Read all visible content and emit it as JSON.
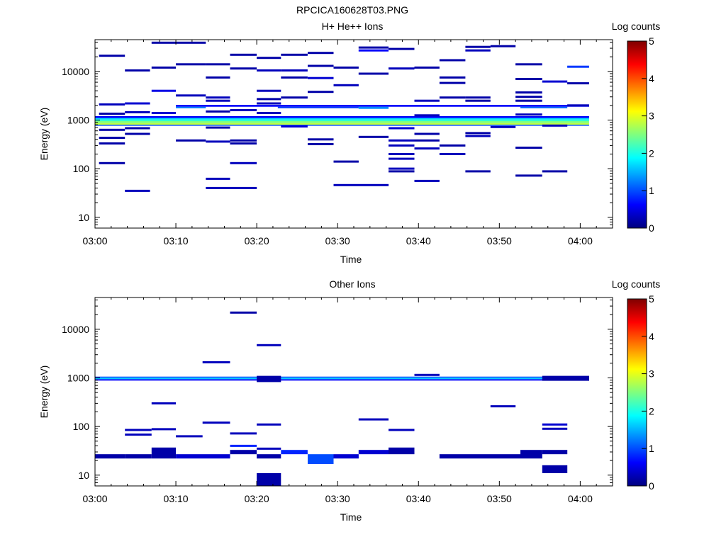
{
  "figure_title": "RPCICA160628T03.PNG",
  "colormap": [
    "#00007f",
    "#0000ff",
    "#007fff",
    "#00ffff",
    "#7fff7f",
    "#ffff00",
    "#ff7f00",
    "#ff0000",
    "#7f0000"
  ],
  "chart_data": [
    {
      "type": "heatmap",
      "title": "H+ He++ Ions",
      "xlabel": "Time",
      "ylabel": "Energy (eV)",
      "x_ticks": [
        "03:00",
        "03:10",
        "03:20",
        "03:30",
        "03:40",
        "03:50",
        "04:00"
      ],
      "y_ticks": [
        "10",
        "100",
        "1000",
        "10000"
      ],
      "y_scale": "log",
      "ylim": [
        6,
        45000
      ],
      "xlim_minutes": [
        0,
        64
      ],
      "colorbar": {
        "label": "Log counts",
        "ticks": [
          "0",
          "1",
          "2",
          "3",
          "4",
          "5"
        ],
        "range": [
          0,
          5
        ]
      },
      "x_bins_minutes": [
        0,
        3.7,
        6.3,
        10,
        13.7,
        16.7,
        20,
        22.6,
        26.3,
        29.5,
        32.6,
        36.3,
        39.5,
        42.6,
        46.3,
        48.4,
        52.6,
        55.3,
        58.4,
        61.1
      ],
      "bands": [
        {
          "x0": 0,
          "x1": 61.1,
          "e0": 800,
          "e1": 870,
          "v": 2.8
        },
        {
          "x0": 0,
          "x1": 61.1,
          "e0": 870,
          "e1": 950,
          "v": 2.5
        },
        {
          "x0": 0,
          "x1": 61.1,
          "e0": 950,
          "e1": 1030,
          "v": 2.1
        },
        {
          "x0": 0,
          "x1": 61.1,
          "e0": 1030,
          "e1": 1100,
          "v": 1.7
        },
        {
          "x0": 0,
          "x1": 61.1,
          "e0": 1100,
          "e1": 1200,
          "v": 0.6
        },
        {
          "x0": 0,
          "x1": 61.1,
          "e0": 760,
          "e1": 800,
          "v": 1.0
        },
        {
          "x0": 10,
          "x1": 61.1,
          "e0": 1880,
          "e1": 2050,
          "v": 0.6
        },
        {
          "x0": 10,
          "x1": 13.7,
          "e0": 1750,
          "e1": 1880,
          "v": 1.2
        },
        {
          "x0": 22.6,
          "x1": 32.6,
          "e0": 1750,
          "e1": 1880,
          "v": 0.9
        },
        {
          "x0": 32.6,
          "x1": 36.3,
          "e0": 1700,
          "e1": 1880,
          "v": 1.3
        },
        {
          "x0": 52.6,
          "x1": 58.4,
          "e0": 1750,
          "e1": 1880,
          "v": 1.1
        },
        {
          "x0": 61.1,
          "x1": 61.1,
          "e0": 1,
          "e1": 1,
          "v": 0
        }
      ],
      "segments": [
        {
          "x0": 0.5,
          "x1": 3.7,
          "e": 21000,
          "v": 0.2
        },
        {
          "x0": 0.5,
          "x1": 3.7,
          "e": 2100,
          "v": 0.3
        },
        {
          "x0": 0.5,
          "x1": 3.7,
          "e": 1350,
          "v": 0.2
        },
        {
          "x0": 0.5,
          "x1": 3.7,
          "e": 630,
          "v": 0.2
        },
        {
          "x0": 0.5,
          "x1": 3.7,
          "e": 430,
          "v": 0.2
        },
        {
          "x0": 0.5,
          "x1": 3.7,
          "e": 330,
          "v": 0.2
        },
        {
          "x0": 0.5,
          "x1": 3.7,
          "e": 130,
          "v": 0.2
        },
        {
          "x0": 3.7,
          "x1": 6.8,
          "e": 10500,
          "v": 0.2
        },
        {
          "x0": 3.7,
          "x1": 6.8,
          "e": 2200,
          "v": 0.4
        },
        {
          "x0": 3.7,
          "x1": 6.8,
          "e": 1450,
          "v": 0.3
        },
        {
          "x0": 3.7,
          "x1": 6.8,
          "e": 680,
          "v": 0.2
        },
        {
          "x0": 3.7,
          "x1": 6.8,
          "e": 520,
          "v": 0.2
        },
        {
          "x0": 3.7,
          "x1": 6.8,
          "e": 35,
          "v": 0.3
        },
        {
          "x0": 7,
          "x1": 10,
          "e": 39000,
          "v": 0.2
        },
        {
          "x0": 7,
          "x1": 10,
          "e": 12000,
          "v": 0.2
        },
        {
          "x0": 7,
          "x1": 10,
          "e": 4000,
          "v": 0.5
        },
        {
          "x0": 7,
          "x1": 10,
          "e": 1400,
          "v": 0.4
        },
        {
          "x0": 10,
          "x1": 13.7,
          "e": 39000,
          "v": 0.2
        },
        {
          "x0": 10,
          "x1": 13.7,
          "e": 14000,
          "v": 0.2
        },
        {
          "x0": 10,
          "x1": 13.7,
          "e": 3200,
          "v": 0.3
        },
        {
          "x0": 10,
          "x1": 13.7,
          "e": 380,
          "v": 0.2
        },
        {
          "x0": 13.7,
          "x1": 16.7,
          "e": 14000,
          "v": 0.2
        },
        {
          "x0": 13.7,
          "x1": 16.7,
          "e": 7500,
          "v": 0.2
        },
        {
          "x0": 13.7,
          "x1": 16.7,
          "e": 2900,
          "v": 0.3
        },
        {
          "x0": 13.7,
          "x1": 16.7,
          "e": 2500,
          "v": 0.3
        },
        {
          "x0": 13.7,
          "x1": 16.7,
          "e": 1500,
          "v": 0.2
        },
        {
          "x0": 13.7,
          "x1": 16.7,
          "e": 700,
          "v": 0.2
        },
        {
          "x0": 13.7,
          "x1": 16.7,
          "e": 360,
          "v": 0.3
        },
        {
          "x0": 13.7,
          "x1": 16.7,
          "e": 62,
          "v": 0.3
        },
        {
          "x0": 13.7,
          "x1": 20,
          "e": 40,
          "v": 0.3
        },
        {
          "x0": 16.7,
          "x1": 20,
          "e": 22000,
          "v": 0.2
        },
        {
          "x0": 16.7,
          "x1": 20,
          "e": 11500,
          "v": 0.2
        },
        {
          "x0": 16.7,
          "x1": 20,
          "e": 1600,
          "v": 0.3
        },
        {
          "x0": 16.7,
          "x1": 20,
          "e": 380,
          "v": 0.2
        },
        {
          "x0": 16.7,
          "x1": 20,
          "e": 330,
          "v": 0.2
        },
        {
          "x0": 16.7,
          "x1": 20,
          "e": 130,
          "v": 0.3
        },
        {
          "x0": 20,
          "x1": 23,
          "e": 19000,
          "v": 0.2
        },
        {
          "x0": 20,
          "x1": 23,
          "e": 10500,
          "v": 0.3
        },
        {
          "x0": 20,
          "x1": 23,
          "e": 4000,
          "v": 0.3
        },
        {
          "x0": 20,
          "x1": 23,
          "e": 2700,
          "v": 0.2
        },
        {
          "x0": 20,
          "x1": 23,
          "e": 2200,
          "v": 0.3
        },
        {
          "x0": 20,
          "x1": 23,
          "e": 1400,
          "v": 0.3
        },
        {
          "x0": 23,
          "x1": 26.3,
          "e": 22000,
          "v": 0.2
        },
        {
          "x0": 23,
          "x1": 26.3,
          "e": 10500,
          "v": 0.3
        },
        {
          "x0": 23,
          "x1": 26.3,
          "e": 7500,
          "v": 0.2
        },
        {
          "x0": 23,
          "x1": 26.3,
          "e": 2900,
          "v": 0.2
        },
        {
          "x0": 23,
          "x1": 26.3,
          "e": 740,
          "v": 0.4
        },
        {
          "x0": 26.3,
          "x1": 29.5,
          "e": 24000,
          "v": 0.2
        },
        {
          "x0": 26.3,
          "x1": 29.5,
          "e": 13000,
          "v": 0.2
        },
        {
          "x0": 26.3,
          "x1": 29.5,
          "e": 7300,
          "v": 0.4
        },
        {
          "x0": 26.3,
          "x1": 29.5,
          "e": 3800,
          "v": 0.2
        },
        {
          "x0": 26.3,
          "x1": 29.5,
          "e": 400,
          "v": 0.2
        },
        {
          "x0": 26.3,
          "x1": 29.5,
          "e": 320,
          "v": 0.2
        },
        {
          "x0": 29.5,
          "x1": 32.6,
          "e": 12000,
          "v": 0.2
        },
        {
          "x0": 29.5,
          "x1": 32.6,
          "e": 5200,
          "v": 0.3
        },
        {
          "x0": 29.5,
          "x1": 32.6,
          "e": 140,
          "v": 0.2
        },
        {
          "x0": 29.5,
          "x1": 36.3,
          "e": 46,
          "v": 0.3
        },
        {
          "x0": 32.6,
          "x1": 36.3,
          "e": 31000,
          "v": 0.2
        },
        {
          "x0": 32.6,
          "x1": 36.3,
          "e": 27000,
          "v": 0.6
        },
        {
          "x0": 32.6,
          "x1": 36.3,
          "e": 9000,
          "v": 0.2
        },
        {
          "x0": 32.6,
          "x1": 36.3,
          "e": 450,
          "v": 0.2
        },
        {
          "x0": 36.3,
          "x1": 39.5,
          "e": 29000,
          "v": 0.2
        },
        {
          "x0": 36.3,
          "x1": 39.5,
          "e": 11500,
          "v": 0.3
        },
        {
          "x0": 36.3,
          "x1": 39.5,
          "e": 680,
          "v": 0.4
        },
        {
          "x0": 36.3,
          "x1": 39.5,
          "e": 380,
          "v": 0.3
        },
        {
          "x0": 36.3,
          "x1": 39.5,
          "e": 300,
          "v": 0.3
        },
        {
          "x0": 36.3,
          "x1": 39.5,
          "e": 200,
          "v": 0.3
        },
        {
          "x0": 36.3,
          "x1": 39.5,
          "e": 160,
          "v": 0.3
        },
        {
          "x0": 36.3,
          "x1": 39.5,
          "e": 100,
          "v": 0.3
        },
        {
          "x0": 36.3,
          "x1": 39.5,
          "e": 88,
          "v": 0.2
        },
        {
          "x0": 39.5,
          "x1": 42.6,
          "e": 12000,
          "v": 0.2
        },
        {
          "x0": 39.5,
          "x1": 42.6,
          "e": 2500,
          "v": 0.3
        },
        {
          "x0": 39.5,
          "x1": 42.6,
          "e": 1250,
          "v": 0.3
        },
        {
          "x0": 39.5,
          "x1": 42.6,
          "e": 520,
          "v": 0.2
        },
        {
          "x0": 39.5,
          "x1": 42.6,
          "e": 380,
          "v": 0.2
        },
        {
          "x0": 39.5,
          "x1": 42.6,
          "e": 260,
          "v": 0.3
        },
        {
          "x0": 39.5,
          "x1": 42.6,
          "e": 56,
          "v": 0.3
        },
        {
          "x0": 42.6,
          "x1": 45.8,
          "e": 17000,
          "v": 0.2
        },
        {
          "x0": 42.6,
          "x1": 45.8,
          "e": 7500,
          "v": 0.2
        },
        {
          "x0": 42.6,
          "x1": 45.8,
          "e": 5800,
          "v": 0.2
        },
        {
          "x0": 42.6,
          "x1": 45.8,
          "e": 2900,
          "v": 0.2
        },
        {
          "x0": 42.6,
          "x1": 45.8,
          "e": 300,
          "v": 0.2
        },
        {
          "x0": 42.6,
          "x1": 45.8,
          "e": 200,
          "v": 0.3
        },
        {
          "x0": 45.8,
          "x1": 48.9,
          "e": 32000,
          "v": 0.2
        },
        {
          "x0": 45.8,
          "x1": 48.9,
          "e": 27000,
          "v": 0.3
        },
        {
          "x0": 45.8,
          "x1": 48.9,
          "e": 2900,
          "v": 0.2
        },
        {
          "x0": 45.8,
          "x1": 48.9,
          "e": 2500,
          "v": 0.2
        },
        {
          "x0": 45.8,
          "x1": 48.9,
          "e": 540,
          "v": 0.2
        },
        {
          "x0": 45.8,
          "x1": 48.9,
          "e": 470,
          "v": 0.3
        },
        {
          "x0": 45.8,
          "x1": 48.9,
          "e": 88,
          "v": 0.2
        },
        {
          "x0": 48.9,
          "x1": 52,
          "e": 33000,
          "v": 0.2
        },
        {
          "x0": 48.9,
          "x1": 52,
          "e": 720,
          "v": 0.3
        },
        {
          "x0": 52,
          "x1": 55.3,
          "e": 14000,
          "v": 0.2
        },
        {
          "x0": 52,
          "x1": 55.3,
          "e": 7000,
          "v": 0.2
        },
        {
          "x0": 52,
          "x1": 55.3,
          "e": 3700,
          "v": 0.2
        },
        {
          "x0": 52,
          "x1": 55.3,
          "e": 3000,
          "v": 0.2
        },
        {
          "x0": 52,
          "x1": 55.3,
          "e": 2500,
          "v": 0.2
        },
        {
          "x0": 52,
          "x1": 55.3,
          "e": 1300,
          "v": 0.3
        },
        {
          "x0": 52,
          "x1": 55.3,
          "e": 270,
          "v": 0.2
        },
        {
          "x0": 52,
          "x1": 55.3,
          "e": 72,
          "v": 0.2
        },
        {
          "x0": 55.3,
          "x1": 58.4,
          "e": 6200,
          "v": 0.4
        },
        {
          "x0": 55.3,
          "x1": 58.4,
          "e": 770,
          "v": 0.3
        },
        {
          "x0": 55.3,
          "x1": 58.4,
          "e": 88,
          "v": 0.2
        },
        {
          "x0": 58.4,
          "x1": 61.1,
          "e": 12500,
          "v": 0.9
        },
        {
          "x0": 58.4,
          "x1": 61.1,
          "e": 5700,
          "v": 0.2
        },
        {
          "x0": 58.4,
          "x1": 61.1,
          "e": 2000,
          "v": 0.3
        }
      ]
    },
    {
      "type": "heatmap",
      "title": "Other Ions",
      "xlabel": "Time",
      "ylabel": "Energy (eV)",
      "x_ticks": [
        "03:00",
        "03:10",
        "03:20",
        "03:30",
        "03:40",
        "03:50",
        "04:00"
      ],
      "y_ticks": [
        "10",
        "100",
        "1000",
        "10000"
      ],
      "y_scale": "log",
      "ylim": [
        6,
        45000
      ],
      "xlim_minutes": [
        0,
        64
      ],
      "colorbar": {
        "label": "Log counts",
        "ticks": [
          "0",
          "1",
          "2",
          "3",
          "4",
          "5"
        ],
        "range": [
          0,
          5
        ]
      },
      "bands": [
        {
          "x0": 0,
          "x1": 61.1,
          "e0": 880,
          "e1": 940,
          "v": 0.6
        },
        {
          "x0": 0,
          "x1": 61.1,
          "e0": 940,
          "e1": 1010,
          "v": 1.6
        },
        {
          "x0": 0,
          "x1": 61.1,
          "e0": 1010,
          "e1": 1060,
          "v": 1.0
        },
        {
          "x0": 20,
          "x1": 23,
          "e0": 820,
          "e1": 1100,
          "v": 0.2
        },
        {
          "x0": 55.3,
          "x1": 61.1,
          "e0": 870,
          "e1": 1100,
          "v": 0.2
        },
        {
          "x0": 0,
          "x1": 3.7,
          "e0": 22,
          "e1": 27,
          "v": 0.2
        },
        {
          "x0": 3.7,
          "x1": 7,
          "e0": 22,
          "e1": 27,
          "v": 0.2
        },
        {
          "x0": 7,
          "x1": 10,
          "e0": 22,
          "e1": 37,
          "v": 0.2
        },
        {
          "x0": 10,
          "x1": 16.7,
          "e0": 22,
          "e1": 27,
          "v": 0.4
        },
        {
          "x0": 16.7,
          "x1": 20,
          "e0": 27,
          "e1": 33,
          "v": 0.2
        },
        {
          "x0": 20,
          "x1": 23,
          "e0": 22,
          "e1": 27,
          "v": 0.2
        },
        {
          "x0": 20,
          "x1": 23,
          "e0": 6,
          "e1": 11,
          "v": 0.2
        },
        {
          "x0": 23,
          "x1": 26.3,
          "e0": 27,
          "e1": 33,
          "v": 0.8
        },
        {
          "x0": 26.3,
          "x1": 29.5,
          "e0": 17,
          "e1": 27,
          "v": 1.0
        },
        {
          "x0": 29.5,
          "x1": 32.6,
          "e0": 22,
          "e1": 27,
          "v": 0.4
        },
        {
          "x0": 32.6,
          "x1": 36.3,
          "e0": 27,
          "e1": 33,
          "v": 0.4
        },
        {
          "x0": 36.3,
          "x1": 39.5,
          "e0": 27,
          "e1": 37,
          "v": 0.2
        },
        {
          "x0": 42.6,
          "x1": 52.6,
          "e0": 22,
          "e1": 27,
          "v": 0.2
        },
        {
          "x0": 52.6,
          "x1": 55.3,
          "e0": 22,
          "e1": 33,
          "v": 0.2
        },
        {
          "x0": 55.3,
          "x1": 58.4,
          "e0": 27,
          "e1": 33,
          "v": 0.2
        },
        {
          "x0": 55.3,
          "x1": 58.4,
          "e0": 11,
          "e1": 16,
          "v": 0.2
        }
      ],
      "segments": [
        {
          "x0": 3.7,
          "x1": 7,
          "e": 85,
          "v": 0.3
        },
        {
          "x0": 3.7,
          "x1": 7,
          "e": 68,
          "v": 0.3
        },
        {
          "x0": 7,
          "x1": 10,
          "e": 300,
          "v": 0.3
        },
        {
          "x0": 7,
          "x1": 10,
          "e": 88,
          "v": 0.3
        },
        {
          "x0": 10,
          "x1": 13.3,
          "e": 63,
          "v": 0.3
        },
        {
          "x0": 13.3,
          "x1": 16.7,
          "e": 2100,
          "v": 0.3
        },
        {
          "x0": 13.3,
          "x1": 16.7,
          "e": 120,
          "v": 0.3
        },
        {
          "x0": 16.7,
          "x1": 20,
          "e": 22000,
          "v": 0.2
        },
        {
          "x0": 16.7,
          "x1": 20,
          "e": 72,
          "v": 0.3
        },
        {
          "x0": 16.7,
          "x1": 20,
          "e": 40,
          "v": 0.8
        },
        {
          "x0": 20,
          "x1": 23,
          "e": 4700,
          "v": 0.3
        },
        {
          "x0": 20,
          "x1": 23,
          "e": 110,
          "v": 0.3
        },
        {
          "x0": 20,
          "x1": 23,
          "e": 35,
          "v": 0.3
        },
        {
          "x0": 32.6,
          "x1": 36.3,
          "e": 140,
          "v": 0.3
        },
        {
          "x0": 36.3,
          "x1": 39.5,
          "e": 85,
          "v": 0.3
        },
        {
          "x0": 39.5,
          "x1": 42.6,
          "e": 1150,
          "v": 0.3
        },
        {
          "x0": 48.9,
          "x1": 52,
          "e": 260,
          "v": 0.3
        },
        {
          "x0": 55.3,
          "x1": 58.4,
          "e": 110,
          "v": 0.4
        },
        {
          "x0": 55.3,
          "x1": 58.4,
          "e": 90,
          "v": 0.3
        }
      ]
    }
  ]
}
